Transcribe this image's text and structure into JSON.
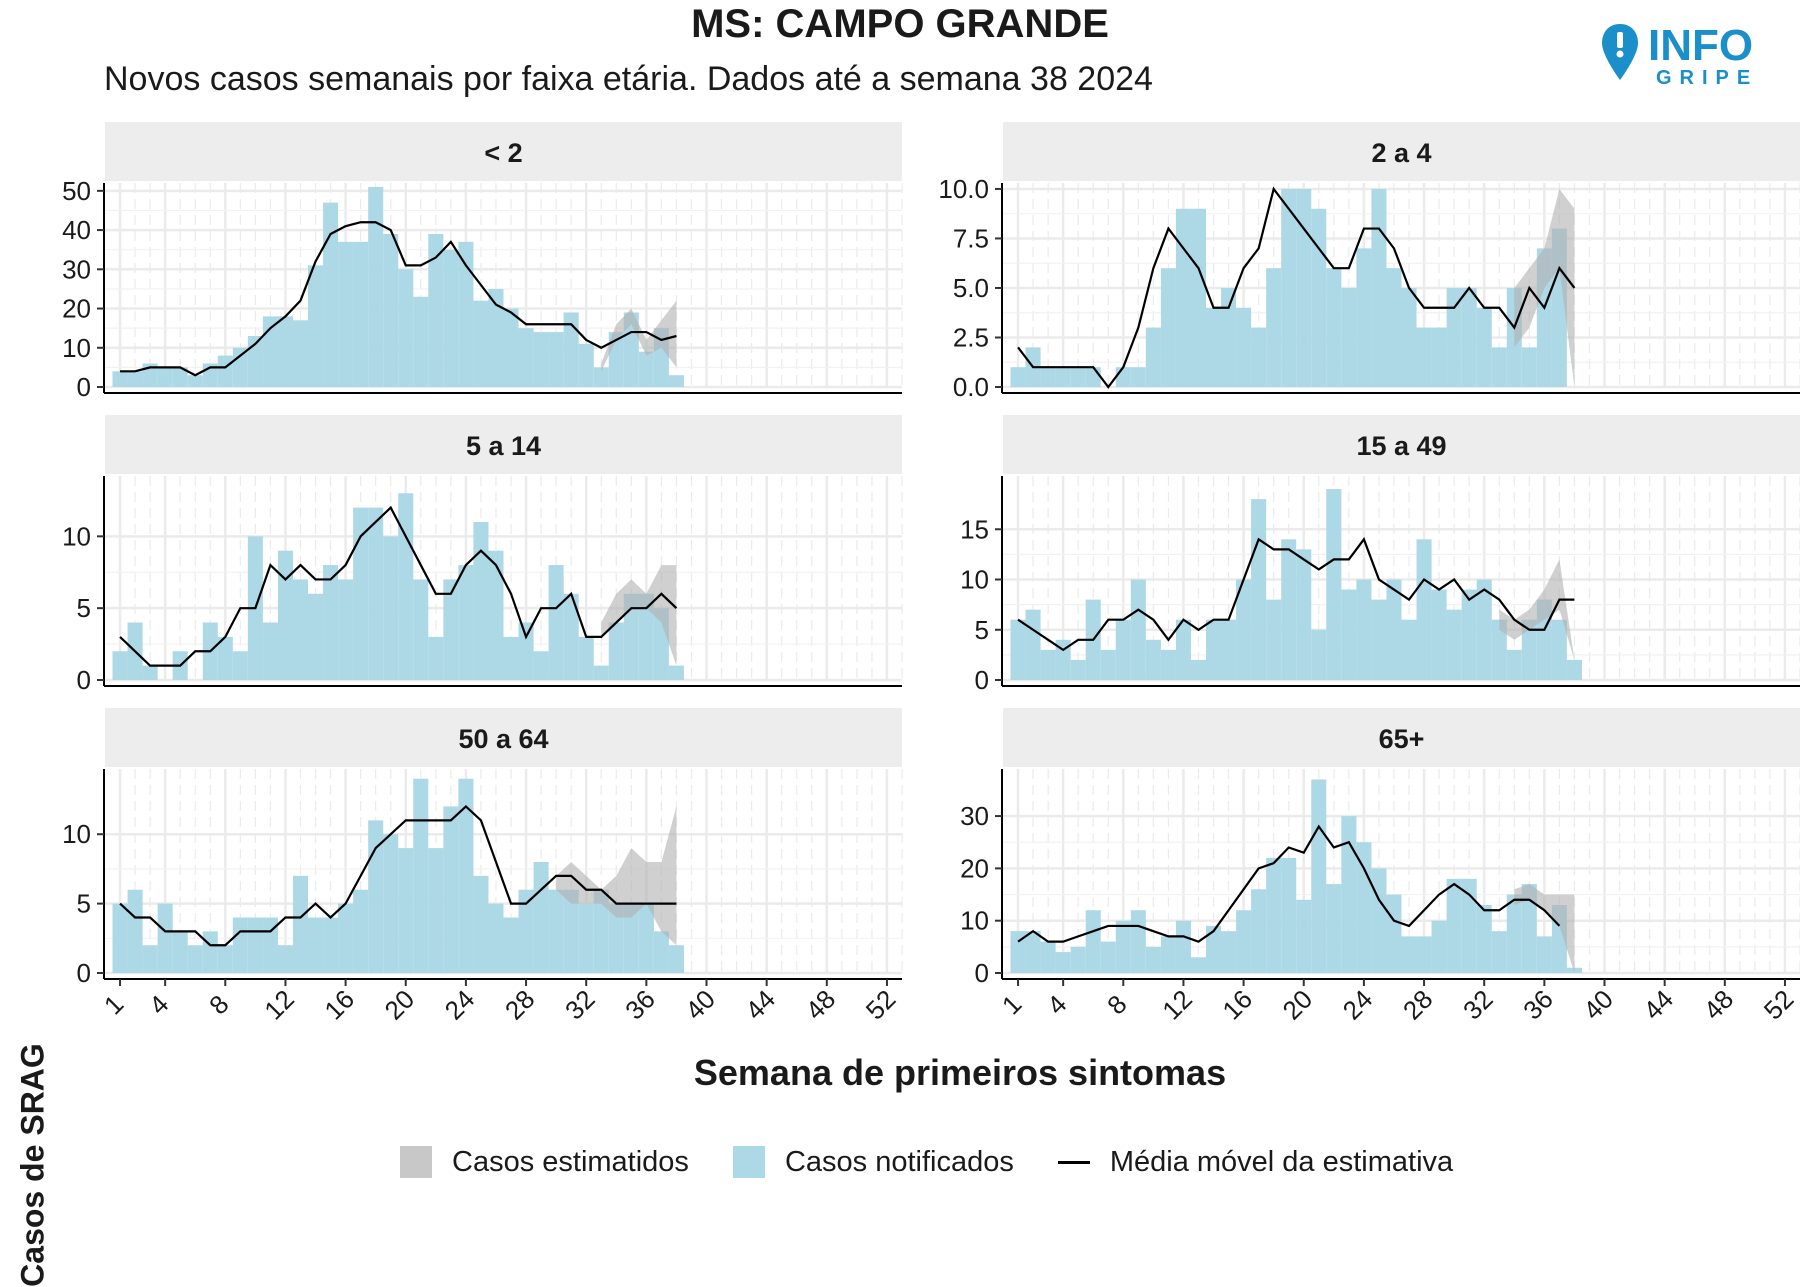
{
  "header": {
    "title": "MS: CAMPO GRANDE",
    "subtitle": "Novos casos semanais por faixa etária. Dados até a semana 38 2024"
  },
  "logo": {
    "line1": "INFO",
    "line2": "GRIPE",
    "icon": "location-pin-icon",
    "color": "#1a8fc9"
  },
  "axes": {
    "ylabel": "Casos de SRAG",
    "xlabel": "Semana de primeiros sintomas",
    "x_ticks": [
      1,
      4,
      8,
      12,
      16,
      20,
      24,
      28,
      32,
      36,
      40,
      44,
      48,
      52
    ],
    "x_range": [
      0,
      53
    ]
  },
  "legend": {
    "position": "bottom",
    "items": [
      {
        "label": "Casos estimatidos",
        "key": "estimated",
        "color": "#c8c8c8"
      },
      {
        "label": "Casos notificados",
        "key": "reported",
        "color": "#add8e6"
      },
      {
        "label": "Média móvel da estimativa",
        "key": "moving_avg",
        "color": "#000000"
      }
    ]
  },
  "chart_data": [
    {
      "type": "bar",
      "facet": "< 2",
      "ylim": [
        0,
        52
      ],
      "y_ticks": [
        0,
        10,
        20,
        30,
        40,
        50
      ],
      "y_tick_labels": [
        "0",
        "10",
        "20",
        "30",
        "40",
        "50"
      ],
      "weeks": [
        1,
        38
      ],
      "reported": [
        4,
        4,
        6,
        5,
        5,
        3,
        6,
        8,
        10,
        13,
        18,
        18,
        17,
        31,
        47,
        37,
        37,
        51,
        39,
        30,
        23,
        39,
        35,
        37,
        22,
        25,
        20,
        15,
        14,
        14,
        19,
        11,
        5,
        14,
        19,
        9,
        15,
        3
      ],
      "estimated_band": {
        "weeks": [
          33,
          34,
          35,
          36,
          37,
          38
        ],
        "low": [
          4,
          12,
          16,
          8,
          10,
          5
        ],
        "high": [
          6,
          16,
          20,
          12,
          17,
          22
        ]
      },
      "moving_avg": [
        4,
        4,
        5,
        5,
        5,
        3,
        5,
        5,
        8,
        11,
        15,
        18,
        22,
        32,
        39,
        41,
        42,
        42,
        40,
        31,
        31,
        33,
        37,
        31,
        26,
        21,
        19,
        16,
        16,
        16,
        16,
        12,
        10,
        12,
        14,
        14,
        12,
        13
      ]
    },
    {
      "type": "bar",
      "facet": "2 a 4",
      "ylim": [
        0,
        10.3
      ],
      "y_ticks": [
        0,
        2.5,
        5,
        7.5,
        10
      ],
      "y_tick_labels": [
        "0.0",
        "2.5",
        "5.0",
        "7.5",
        "10.0"
      ],
      "weeks": [
        1,
        38
      ],
      "reported": [
        1,
        2,
        1,
        1,
        1,
        1,
        0,
        1,
        1,
        3,
        6,
        9,
        9,
        4,
        5,
        4,
        3,
        6,
        10,
        10,
        9,
        6,
        5,
        7,
        10,
        6,
        5,
        3,
        3,
        5,
        5,
        4,
        2,
        5,
        2,
        7,
        8,
        0
      ],
      "estimated_band": {
        "weeks": [
          34,
          35,
          36,
          37,
          38
        ],
        "low": [
          2,
          3,
          5,
          6,
          0
        ],
        "high": [
          5,
          6,
          7,
          10,
          9
        ]
      },
      "moving_avg": [
        2,
        1,
        1,
        1,
        1,
        1,
        0,
        1,
        3,
        6,
        8,
        7,
        6,
        4,
        4,
        6,
        7,
        10,
        9,
        8,
        7,
        6,
        6,
        8,
        8,
        7,
        5,
        4,
        4,
        4,
        5,
        4,
        4,
        3,
        5,
        4,
        6,
        5
      ]
    },
    {
      "type": "bar",
      "facet": "5 a 14",
      "ylim": [
        0,
        14.2
      ],
      "y_ticks": [
        0,
        5,
        10
      ],
      "y_tick_labels": [
        "0",
        "5",
        "10"
      ],
      "weeks": [
        1,
        38
      ],
      "reported": [
        2,
        4,
        1,
        0,
        2,
        0,
        4,
        3,
        2,
        10,
        4,
        9,
        7,
        6,
        8,
        7,
        12,
        12,
        10,
        13,
        7,
        3,
        7,
        8,
        11,
        9,
        3,
        4,
        2,
        8,
        6,
        3,
        1,
        4,
        6,
        6,
        5,
        1
      ],
      "estimated_band": {
        "weeks": [
          33,
          34,
          35,
          36,
          37,
          38
        ],
        "low": [
          3,
          4,
          5,
          5,
          4,
          1
        ],
        "high": [
          4,
          6,
          7,
          6,
          8,
          8
        ]
      },
      "moving_avg": [
        3,
        2,
        1,
        1,
        1,
        2,
        2,
        3,
        5,
        5,
        8,
        7,
        8,
        7,
        7,
        8,
        10,
        11,
        12,
        10,
        8,
        6,
        6,
        8,
        9,
        8,
        6,
        3,
        5,
        5,
        6,
        3,
        3,
        4,
        5,
        5,
        6,
        5
      ]
    },
    {
      "type": "bar",
      "facet": "15 a 49",
      "ylim": [
        0,
        20.3
      ],
      "y_ticks": [
        0,
        5,
        10,
        15
      ],
      "y_tick_labels": [
        "0",
        "5",
        "10",
        "15"
      ],
      "weeks": [
        1,
        38
      ],
      "reported": [
        6,
        7,
        3,
        4,
        2,
        8,
        3,
        6,
        10,
        4,
        3,
        6,
        2,
        6,
        6,
        10,
        18,
        8,
        14,
        13,
        5,
        19,
        9,
        10,
        8,
        10,
        6,
        14,
        9,
        7,
        9,
        10,
        6,
        3,
        6,
        8,
        6,
        2
      ],
      "estimated_band": {
        "weeks": [
          33,
          34,
          35,
          36,
          37,
          38
        ],
        "low": [
          5,
          4,
          5,
          6,
          7,
          2
        ],
        "high": [
          7,
          6,
          7,
          9,
          12,
          2
        ]
      },
      "moving_avg": [
        6,
        5,
        4,
        3,
        4,
        4,
        6,
        6,
        7,
        6,
        4,
        6,
        5,
        6,
        6,
        10,
        14,
        13,
        13,
        12,
        11,
        12,
        12,
        14,
        10,
        9,
        8,
        10,
        9,
        10,
        8,
        9,
        8,
        6,
        5,
        5,
        8,
        8
      ]
    },
    {
      "type": "bar",
      "facet": "50 a 64",
      "ylim": [
        0,
        14.7
      ],
      "y_ticks": [
        0,
        5,
        10
      ],
      "y_tick_labels": [
        "0",
        "5",
        "10"
      ],
      "weeks": [
        1,
        38
      ],
      "reported": [
        5,
        6,
        2,
        5,
        3,
        2,
        3,
        2,
        4,
        4,
        4,
        2,
        7,
        4,
        4,
        5,
        6,
        11,
        10,
        9,
        14,
        9,
        12,
        14,
        7,
        5,
        4,
        6,
        8,
        6,
        6,
        5,
        6,
        5,
        5,
        5,
        3,
        2
      ],
      "estimated_band": {
        "weeks": [
          30,
          31,
          32,
          33,
          34,
          35,
          36,
          37,
          38
        ],
        "low": [
          6,
          5,
          5,
          5,
          4,
          4,
          5,
          3,
          2
        ],
        "high": [
          7,
          8,
          7,
          6,
          7,
          9,
          8,
          8,
          12
        ]
      },
      "moving_avg": [
        5,
        4,
        4,
        3,
        3,
        3,
        2,
        2,
        3,
        3,
        3,
        4,
        4,
        5,
        4,
        5,
        7,
        9,
        10,
        11,
        11,
        11,
        11,
        12,
        11,
        8,
        5,
        5,
        6,
        7,
        7,
        6,
        6,
        5,
        5,
        5,
        5,
        5
      ]
    },
    {
      "type": "bar",
      "facet": "65+",
      "ylim": [
        0,
        39
      ],
      "y_ticks": [
        0,
        10,
        20,
        30
      ],
      "y_tick_labels": [
        "0",
        "10",
        "20",
        "30"
      ],
      "weeks": [
        1,
        38
      ],
      "reported": [
        8,
        8,
        6,
        4,
        5,
        12,
        6,
        10,
        12,
        5,
        7,
        10,
        3,
        9,
        8,
        12,
        16,
        22,
        22,
        14,
        37,
        17,
        30,
        25,
        20,
        15,
        7,
        7,
        10,
        18,
        18,
        13,
        8,
        15,
        17,
        7,
        13,
        1
      ],
      "estimated_band": {
        "weeks": [
          34,
          35,
          36,
          37,
          38
        ],
        "low": [
          13,
          14,
          12,
          9,
          0
        ],
        "high": [
          16,
          17,
          15,
          15,
          15
        ]
      },
      "moving_avg": [
        6,
        8,
        6,
        6,
        7,
        8,
        9,
        9,
        9,
        8,
        7,
        7,
        6,
        8,
        12,
        16,
        20,
        21,
        24,
        23,
        28,
        24,
        25,
        20,
        14,
        10,
        9,
        12,
        15,
        17,
        15,
        12,
        12,
        14,
        14,
        12,
        9,
        null
      ]
    }
  ]
}
